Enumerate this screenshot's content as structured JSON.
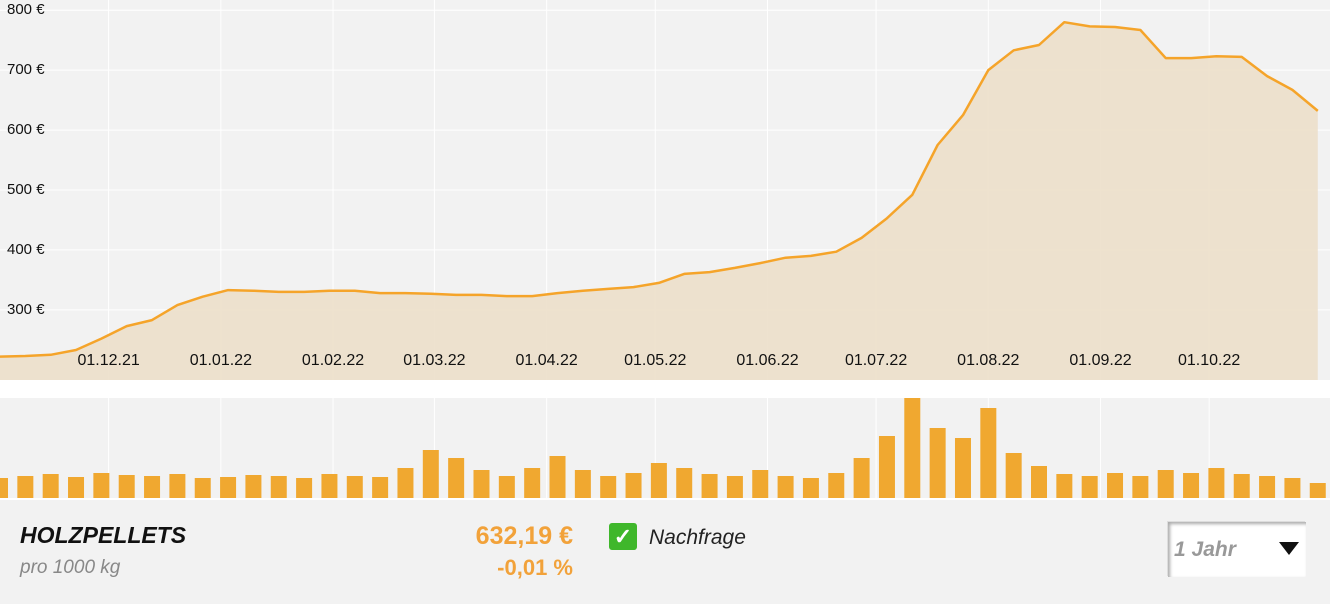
{
  "chart_data": [
    {
      "type": "line",
      "area": true,
      "color": "#f5a42a",
      "fill": "#ecdfca",
      "x": [
        "01.11.21",
        "08.11.21",
        "15.11.21",
        "22.11.21",
        "29.11.21",
        "06.12.21",
        "13.12.21",
        "20.12.21",
        "27.12.21",
        "03.01.22",
        "10.01.22",
        "17.01.22",
        "24.01.22",
        "31.01.22",
        "07.02.22",
        "14.02.22",
        "21.02.22",
        "28.02.22",
        "07.03.22",
        "14.03.22",
        "21.03.22",
        "28.03.22",
        "04.04.22",
        "11.04.22",
        "18.04.22",
        "25.04.22",
        "02.05.22",
        "09.05.22",
        "16.05.22",
        "23.05.22",
        "30.05.22",
        "06.06.22",
        "13.06.22",
        "20.06.22",
        "27.06.22",
        "04.07.22",
        "11.07.22",
        "18.07.22",
        "25.07.22",
        "01.08.22",
        "08.08.22",
        "15.08.22",
        "22.08.22",
        "29.08.22",
        "05.09.22",
        "12.09.22",
        "19.09.22",
        "26.09.22",
        "03.10.22",
        "10.10.22",
        "17.10.22",
        "24.10.22",
        "31.10.22"
      ],
      "values": [
        222,
        223,
        225,
        233,
        252,
        273,
        283,
        308,
        322,
        333,
        332,
        330,
        330,
        332,
        332,
        328,
        328,
        327,
        325,
        325,
        323,
        323,
        328,
        332,
        335,
        338,
        345,
        360,
        363,
        370,
        378,
        387,
        390,
        397,
        420,
        453,
        492,
        575,
        625,
        700,
        733,
        742,
        780,
        773,
        772,
        767,
        720,
        720,
        723,
        722,
        690,
        667,
        632
      ],
      "xlim": [
        "01.11.21",
        "02.11.22"
      ],
      "xticks": [
        "01.12.21",
        "01.01.22",
        "01.02.22",
        "01.03.22",
        "01.04.22",
        "01.05.22",
        "01.06.22",
        "01.07.22",
        "01.08.22",
        "01.09.22",
        "01.10.22"
      ],
      "ylim": [
        183,
        817
      ],
      "yticks": [
        {
          "value": 300,
          "label": "300 €"
        },
        {
          "value": 400,
          "label": "400 €"
        },
        {
          "value": 500,
          "label": "500 €"
        },
        {
          "value": 600,
          "label": "600 €"
        },
        {
          "value": 700,
          "label": "700 €"
        },
        {
          "value": 800,
          "label": "800 €"
        }
      ],
      "grid": true
    },
    {
      "type": "bar",
      "color": "#f0a830",
      "x": [
        "01.11.21",
        "08.11.21",
        "15.11.21",
        "22.11.21",
        "29.11.21",
        "06.12.21",
        "13.12.21",
        "20.12.21",
        "27.12.21",
        "03.01.22",
        "10.01.22",
        "17.01.22",
        "24.01.22",
        "31.01.22",
        "07.02.22",
        "14.02.22",
        "21.02.22",
        "28.02.22",
        "07.03.22",
        "14.03.22",
        "21.03.22",
        "28.03.22",
        "04.04.22",
        "11.04.22",
        "18.04.22",
        "25.04.22",
        "02.05.22",
        "09.05.22",
        "16.05.22",
        "23.05.22",
        "30.05.22",
        "06.06.22",
        "13.06.22",
        "20.06.22",
        "27.06.22",
        "04.07.22",
        "11.07.22",
        "18.07.22",
        "25.07.22",
        "01.08.22",
        "08.08.22",
        "15.08.22",
        "22.08.22",
        "29.08.22",
        "05.09.22",
        "12.09.22",
        "19.09.22",
        "26.09.22",
        "03.10.22",
        "10.10.22",
        "17.10.22",
        "24.10.22",
        "31.10.22"
      ],
      "values": [
        20,
        22,
        24,
        21,
        25,
        23,
        22,
        24,
        20,
        21,
        23,
        22,
        20,
        24,
        22,
        21,
        30,
        48,
        40,
        28,
        22,
        30,
        42,
        28,
        22,
        25,
        35,
        30,
        24,
        22,
        28,
        22,
        20,
        25,
        40,
        62,
        100,
        70,
        60,
        90,
        45,
        32,
        24,
        22,
        25,
        22,
        28,
        25,
        30,
        24,
        22,
        20,
        15
      ],
      "xlim": [
        "01.11.21",
        "02.11.22"
      ],
      "ylim": [
        0,
        100
      ],
      "xticks": [
        "01.12.21",
        "01.01.22",
        "01.02.22",
        "01.03.22",
        "01.04.22",
        "01.05.22",
        "01.06.22",
        "01.07.22",
        "01.08.22",
        "01.09.22",
        "01.10.22"
      ],
      "grid": true
    }
  ],
  "info": {
    "title": "HOLZPELLETS",
    "subtitle": "pro 1000 kg",
    "price": "632,19 €",
    "change": "-0,01 %",
    "indicator": "Nachfrage",
    "period": "1 Jahr"
  }
}
